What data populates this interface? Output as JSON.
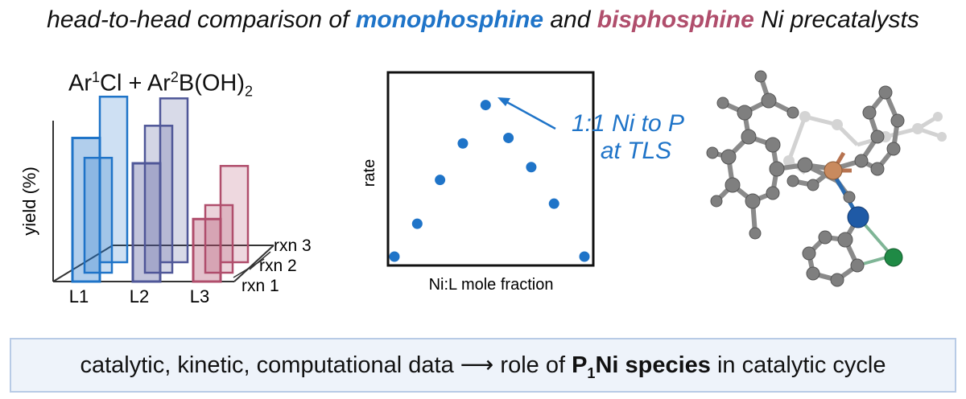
{
  "header": {
    "prefix": "head-to-head comparison of ",
    "mono": "monophosphine",
    "middle": " and ",
    "bis": "bisphosphine",
    "suffix": " Ni precatalysts"
  },
  "reaction": {
    "ar1": "Ar",
    "sup1": "1",
    "cl": "Cl + Ar",
    "sup2": "2",
    "boron": "B(OH)",
    "sub": "2"
  },
  "colors": {
    "mono": "#1f74c8",
    "mid": "#4f5798",
    "bis": "#b04e6c"
  },
  "chart_data": [
    {
      "type": "bar",
      "ylabel": "yield (%)",
      "categories": [
        "L1",
        "L2",
        "L3"
      ],
      "series_labels": [
        "rxn 1",
        "rxn 2",
        "rxn 3"
      ],
      "series": [
        {
          "name": "rxn 1",
          "values": [
            85,
            70,
            37
          ]
        },
        {
          "name": "rxn 2",
          "values": [
            68,
            87,
            40
          ]
        },
        {
          "name": "rxn 3",
          "values": [
            98,
            97,
            57
          ]
        }
      ],
      "ylim": [
        0,
        100
      ]
    },
    {
      "type": "scatter",
      "xlabel": "Ni:L mole fraction",
      "ylabel": "rate",
      "annotation": [
        "1:1 Ni to P",
        "at TLS"
      ],
      "points": [
        [
          0.0,
          0.0
        ],
        [
          0.12,
          0.18
        ],
        [
          0.24,
          0.42
        ],
        [
          0.36,
          0.62
        ],
        [
          0.48,
          0.83
        ],
        [
          0.6,
          0.65
        ],
        [
          0.72,
          0.49
        ],
        [
          0.84,
          0.29
        ],
        [
          1.0,
          0.0
        ]
      ]
    }
  ],
  "banner": {
    "pre": "catalytic, kinetic, computational data ⟶ role of ",
    "bold_p": "P",
    "bold_sub": "1",
    "bold_rest": "Ni species",
    "post": " in catalytic cycle"
  }
}
